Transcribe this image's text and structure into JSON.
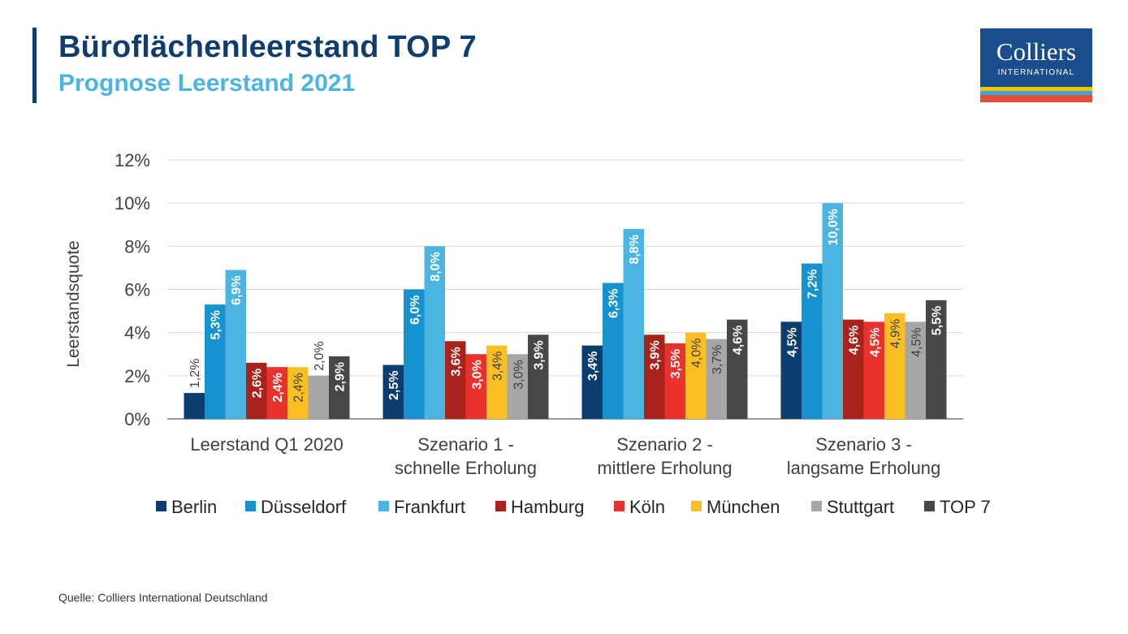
{
  "header": {
    "title": "Büroflächenleerstand TOP 7",
    "subtitle": "Prognose Leerstand 2021"
  },
  "logo": {
    "name": "Colliers",
    "tagline": "INTERNATIONAL",
    "colors": {
      "background": "#1a4d8c",
      "stripe_yellow": "#f5c400",
      "stripe_blue": "#3ba7d9",
      "stripe_red": "#e74c3c"
    }
  },
  "source": "Quelle: Colliers International Deutschland",
  "chart_data": {
    "type": "bar",
    "title": "",
    "xlabel": "",
    "ylabel": "Leerstandsquote",
    "ylim": [
      0,
      12
    ],
    "yticks": [
      "0%",
      "2%",
      "4%",
      "6%",
      "8%",
      "10%",
      "12%"
    ],
    "grid": true,
    "legend_position": "bottom",
    "categories": [
      [
        "Leerstand Q1 2020"
      ],
      [
        "Szenario 1 -",
        "schnelle Erholung"
      ],
      [
        "Szenario 2 -",
        "mittlere Erholung"
      ],
      [
        "Szenario 3 -",
        "langsame Erholung"
      ]
    ],
    "series": [
      {
        "name": "Berlin",
        "color": "#0b3d6e",
        "values": [
          1.2,
          2.5,
          3.4,
          4.5
        ],
        "labels": [
          "1,2%",
          "2,5%",
          "3,4%",
          "4,5%"
        ]
      },
      {
        "name": "Düsseldorf",
        "color": "#1692cf",
        "values": [
          5.3,
          6.0,
          6.3,
          7.2
        ],
        "labels": [
          "5,3%",
          "6,0%",
          "6,3%",
          "7,2%"
        ]
      },
      {
        "name": "Frankfurt",
        "color": "#4bb4e0",
        "values": [
          6.9,
          8.0,
          8.8,
          10.0
        ],
        "labels": [
          "6,9%",
          "8,0%",
          "8,8%",
          "10,0%"
        ]
      },
      {
        "name": "Hamburg",
        "color": "#a8231c",
        "values": [
          2.6,
          3.6,
          3.9,
          4.6
        ],
        "labels": [
          "2,6%",
          "3,6%",
          "3,9%",
          "4,6%"
        ]
      },
      {
        "name": "Köln",
        "color": "#e8322b",
        "values": [
          2.4,
          3.0,
          3.5,
          4.5
        ],
        "labels": [
          "2,4%",
          "3,0%",
          "3,5%",
          "4,5%"
        ]
      },
      {
        "name": "München",
        "color": "#fbbf24",
        "values": [
          2.4,
          3.4,
          4.0,
          4.9
        ],
        "labels": [
          "2,4%",
          "3,4%",
          "4,0%",
          "4,9%"
        ]
      },
      {
        "name": "Stuttgart",
        "color": "#a6a6a6",
        "values": [
          2.0,
          3.0,
          3.7,
          4.5
        ],
        "labels": [
          "2,0%",
          "3,0%",
          "3,7%",
          "4,5%"
        ]
      },
      {
        "name": "TOP 7",
        "color": "#474747",
        "values": [
          2.9,
          3.9,
          4.6,
          5.5
        ],
        "labels": [
          "2,9%",
          "3,9%",
          "4,6%",
          "5,5%"
        ]
      }
    ]
  }
}
